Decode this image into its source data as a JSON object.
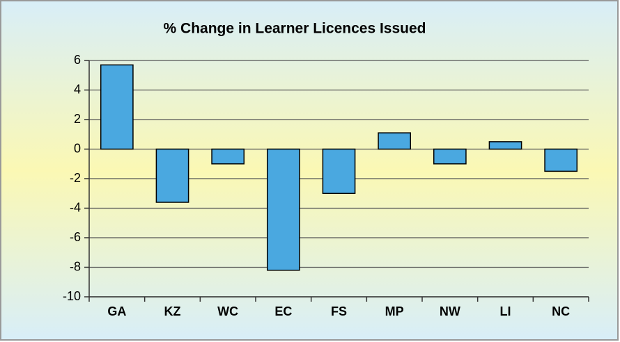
{
  "chart_data": {
    "type": "bar",
    "title": "% Change in Learner Licences Issued",
    "categories": [
      "GA",
      "KZ",
      "WC",
      "EC",
      "FS",
      "MP",
      "NW",
      "LI",
      "NC"
    ],
    "values": [
      5.7,
      -3.6,
      -1.0,
      -8.2,
      -3.0,
      1.1,
      -1.0,
      0.5,
      -1.5
    ],
    "color": "#4aa8e0",
    "ylim": [
      -10,
      6
    ],
    "yticks": [
      -10,
      -8,
      -6,
      -4,
      -2,
      0,
      2,
      4,
      6
    ],
    "grid": true
  }
}
